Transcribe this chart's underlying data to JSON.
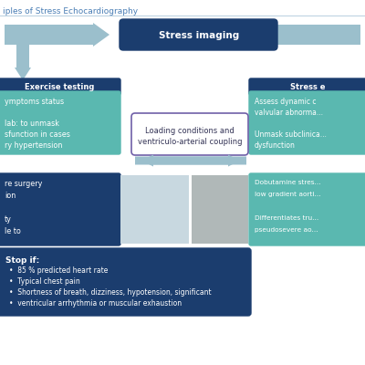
{
  "title": "iples of Stress Echocardiography",
  "title_fontsize": 6.5,
  "title_color": "#4a7eb5",
  "bg_color": "#ffffff",
  "dark_blue": "#1b3d6e",
  "teal": "#5ab8b0",
  "light_blue_arrow": "#9bbfcc",
  "box_stroke_purple": "#7060a8",
  "stress_imaging_label": "Stress imaging",
  "exercise_testing_label": "Exercise testing",
  "stress_echo_label": "Stress e",
  "loading_line1": "Loading conditions and",
  "loading_line2": "ventriculo-arterial coupling",
  "left_teal_lines": [
    "ymptoms status",
    "",
    "lab: to unmask",
    "sfunction in cases",
    "ry hypertension"
  ],
  "right_teal_lines": [
    "Assess dynamic c...",
    "valvular abnorma...",
    "",
    "Unmask subclinica...",
    "dysfunction"
  ],
  "bottom_left_lines": [
    "re surgery",
    "ion",
    "",
    "ty",
    "le to"
  ],
  "bottom_right_lines": [
    "Dobutamine stres...",
    "low gradient aorti...",
    "",
    "Differentiates tru...",
    "pseudosevere ao..."
  ],
  "stop_title": "Stop if:",
  "stop_bullets": [
    "85 % predicted heart rate",
    "Typical chest pain",
    "Shortness of breath, dizziness, hypotension, significant",
    "ventricular arrhythmia or muscular exhaustion"
  ]
}
